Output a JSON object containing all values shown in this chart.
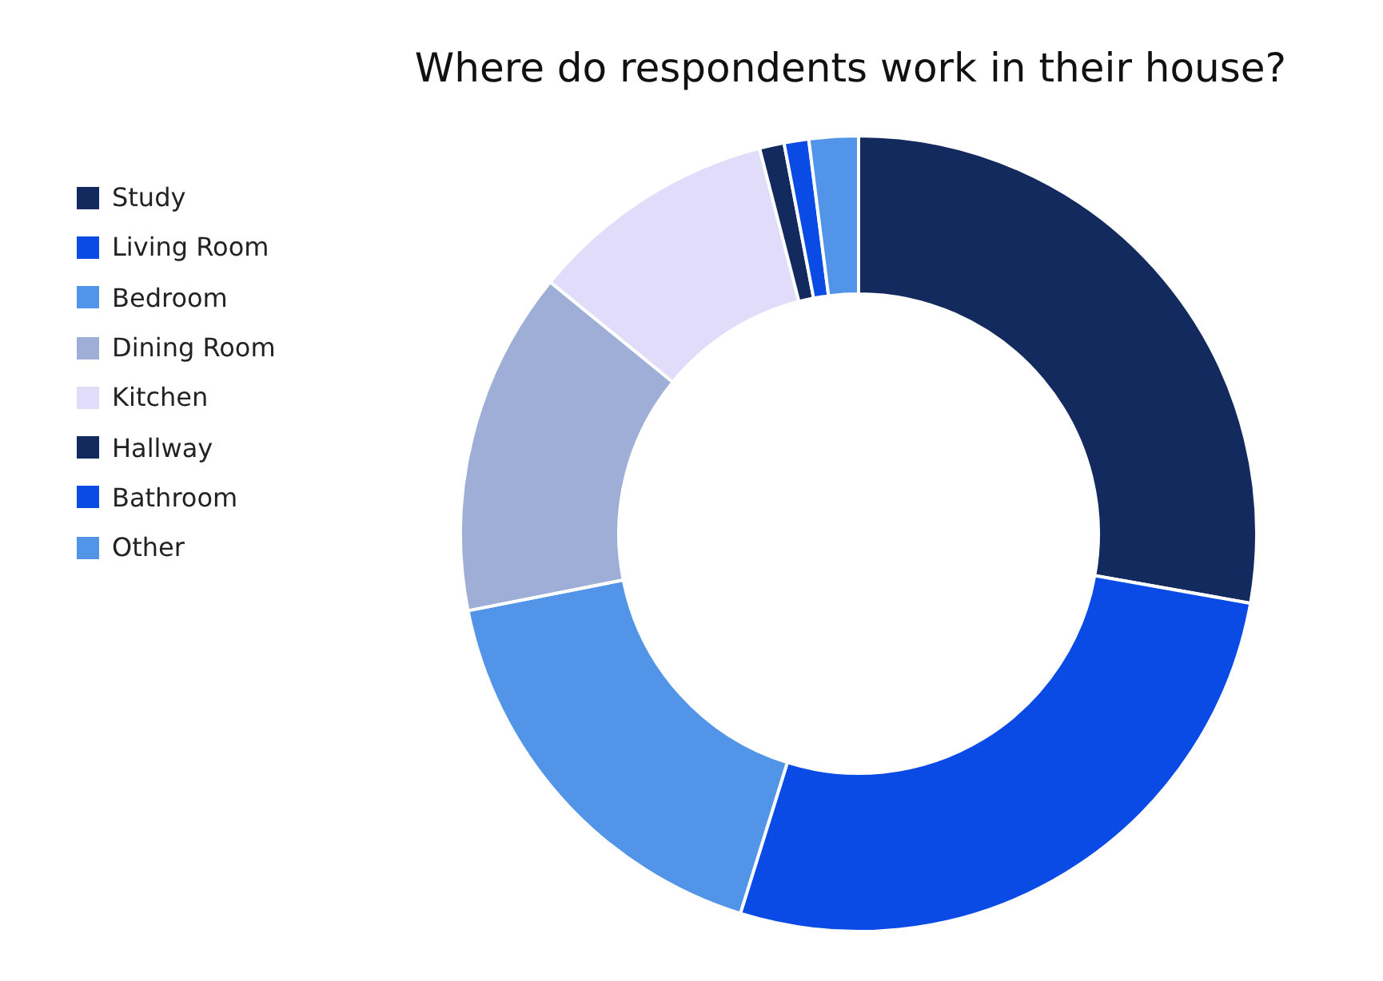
{
  "chart_data": {
    "type": "donut",
    "title": "Where do respondents work in their house?",
    "categories": [
      "Study",
      "Living Room",
      "Bedroom",
      "Dining Room",
      "Kitchen",
      "Hallway",
      "Bathroom",
      "Other"
    ],
    "values": [
      27.8,
      27.0,
      17.1,
      14.0,
      10.1,
      1.0,
      1.0,
      2.0
    ],
    "colors": [
      "#132a5e",
      "#0a4be6",
      "#5294e8",
      "#9eaed6",
      "#e0dcfa",
      "#132a5e",
      "#0a4be6",
      "#5294e8"
    ],
    "legend": "left"
  }
}
